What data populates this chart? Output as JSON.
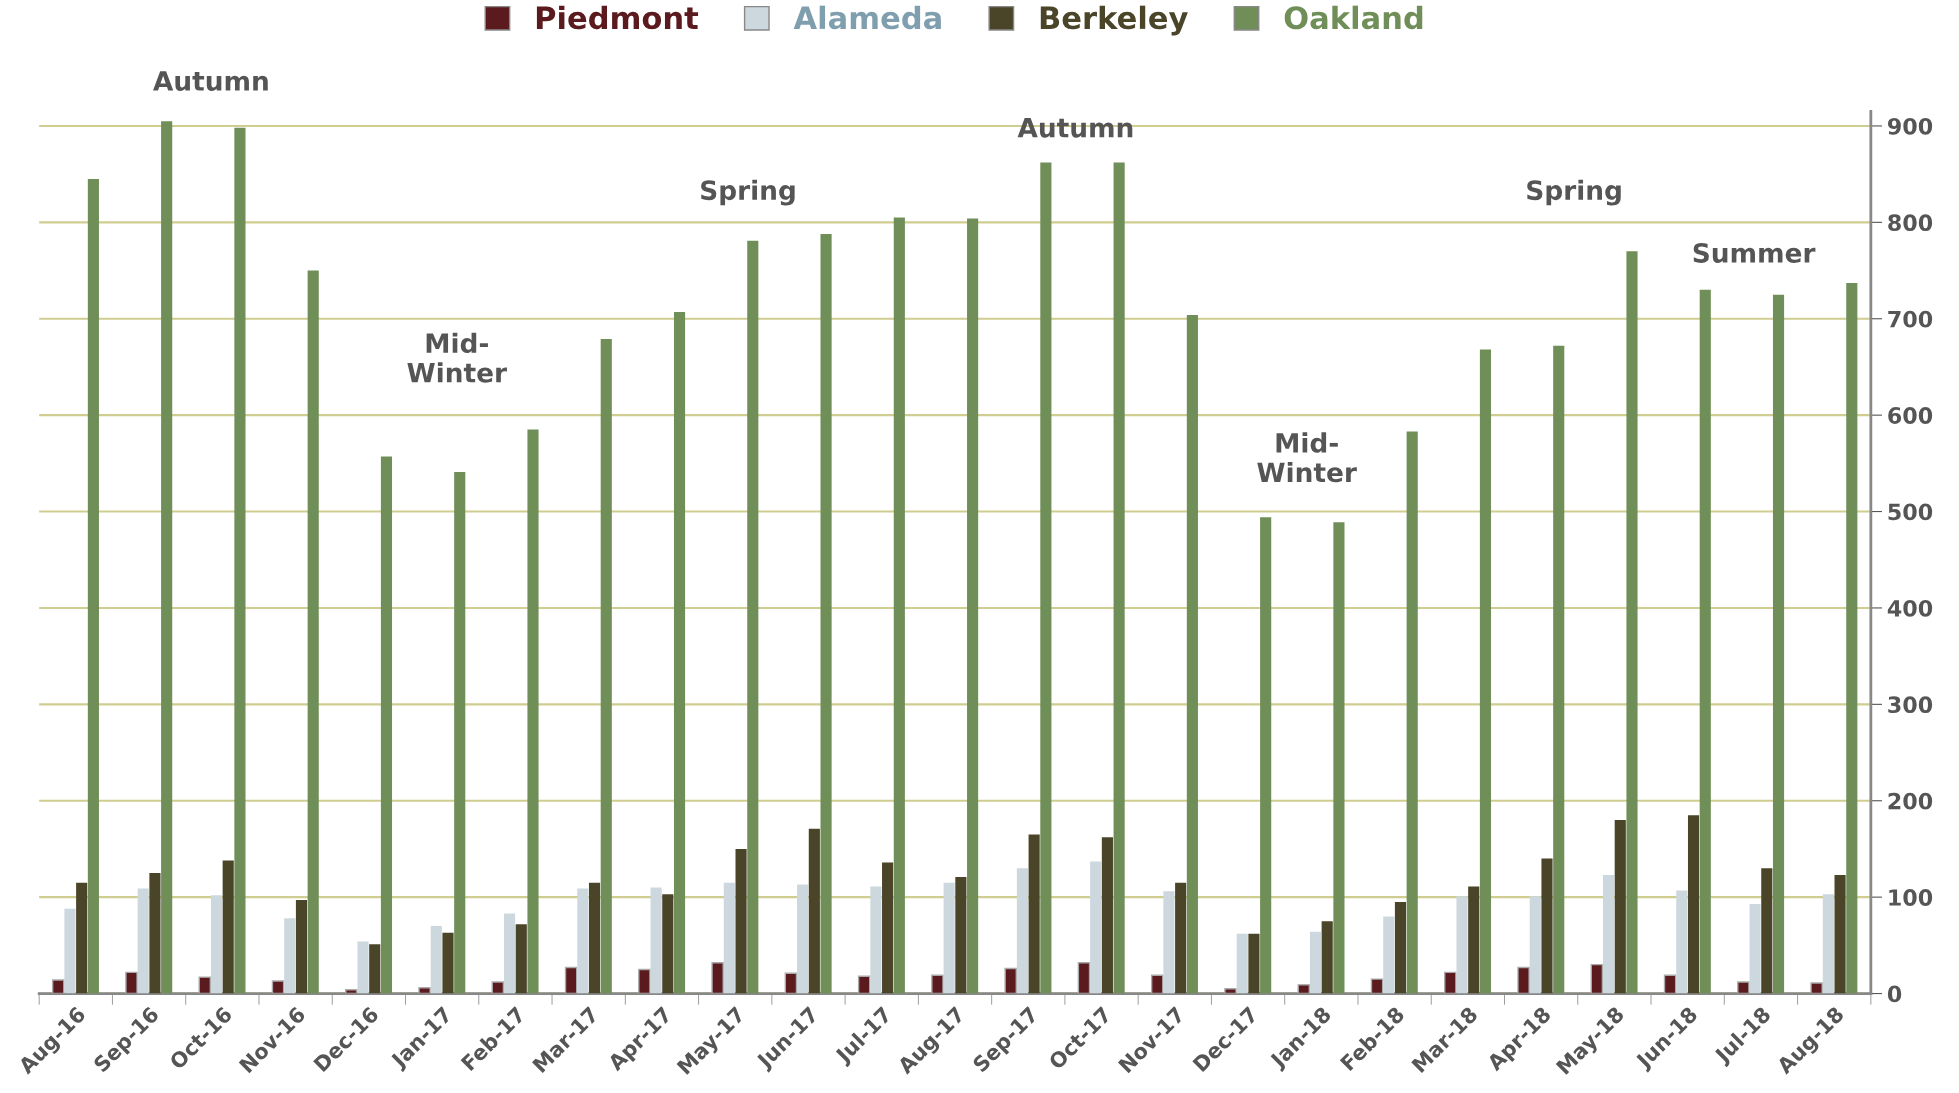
{
  "chart_data": {
    "type": "bar",
    "categories": [
      "Aug-16",
      "Sep-16",
      "Oct-16",
      "Nov-16",
      "Dec-16",
      "Jan-17",
      "Feb-17",
      "Mar-17",
      "Apr-17",
      "May-17",
      "Jun-17",
      "Jul-17",
      "Aug-17",
      "Sep-17",
      "Oct-17",
      "Nov-17",
      "Dec-17",
      "Jan-18",
      "Feb-18",
      "Mar-18",
      "Apr-18",
      "May-18",
      "Jun-18",
      "Jul-18",
      "Aug-18"
    ],
    "series": [
      {
        "name": "Piedmont",
        "color": "#5a1a1e",
        "values": [
          14,
          22,
          17,
          13,
          4,
          6,
          12,
          27,
          25,
          32,
          21,
          18,
          19,
          26,
          32,
          19,
          5,
          9,
          15,
          22,
          27,
          30,
          19,
          12,
          11
        ]
      },
      {
        "name": "Alameda",
        "color": "#ccd8de",
        "values": [
          88,
          109,
          102,
          78,
          54,
          70,
          83,
          109,
          110,
          115,
          113,
          111,
          115,
          130,
          137,
          106,
          62,
          64,
          80,
          101,
          101,
          123,
          107,
          93,
          103
        ]
      },
      {
        "name": "Berkeley",
        "color": "#4a4529",
        "values": [
          115,
          125,
          138,
          97,
          51,
          63,
          72,
          115,
          103,
          150,
          171,
          136,
          121,
          165,
          162,
          115,
          62,
          75,
          95,
          111,
          140,
          180,
          185,
          130,
          123
        ]
      },
      {
        "name": "Oakland",
        "color": "#708f58",
        "values": [
          845,
          905,
          898,
          750,
          557,
          541,
          585,
          679,
          707,
          781,
          788,
          805,
          804,
          862,
          862,
          704,
          494,
          489,
          583,
          668,
          672,
          770,
          730,
          725,
          737
        ]
      }
    ],
    "ylim": [
      0,
      915
    ],
    "yticks": [
      0,
      100,
      200,
      300,
      400,
      500,
      600,
      700,
      800,
      900
    ],
    "grid": "y",
    "legend": "top",
    "annotations": [
      "Autumn",
      "Mid-\nWinter",
      "Spring",
      "Autumn",
      "Mid-\nWinter",
      "Spring",
      "Summer"
    ]
  }
}
